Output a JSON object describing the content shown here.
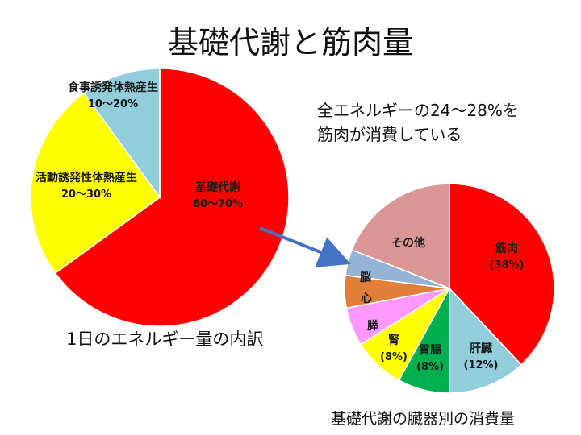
{
  "title": "基礎代謝と筋肉量",
  "annotation": {
    "line1": "全エネルギーの24～28%を",
    "line2": "筋肉が消費している"
  },
  "colors": {
    "arrow": "#4472c4"
  },
  "chart_data": [
    {
      "type": "pie",
      "caption": "1日のエネルギー量の内訳",
      "slices": [
        {
          "label": "基礎代謝",
          "value_label": "60～70%",
          "value": 65,
          "color": "#ff0000"
        },
        {
          "label": "活動誘発性体熱産生",
          "value_label": "20～30%",
          "value": 25,
          "color": "#ffff00"
        },
        {
          "label": "食事誘発体熱産生",
          "value_label": "10～20%",
          "value": 10,
          "color": "#92cddc"
        }
      ]
    },
    {
      "type": "pie",
      "caption": "基礎代謝の臓器別の消費量",
      "slices": [
        {
          "label": "筋肉",
          "value_label": "(38%)",
          "value": 38,
          "color": "#ff0000"
        },
        {
          "label": "肝臓",
          "value_label": "(12%)",
          "value": 12,
          "color": "#92cddc"
        },
        {
          "label": "胃腸",
          "value_label": "(8%)",
          "value": 8,
          "color": "#00b050"
        },
        {
          "label": "腎",
          "value_label": "(8%)",
          "value": 8,
          "color": "#ffff00"
        },
        {
          "label": "膵",
          "value_label": "",
          "value": 6,
          "color": "#ff99ff"
        },
        {
          "label": "心",
          "value_label": "",
          "value": 5,
          "color": "#e07e3a"
        },
        {
          "label": "脳",
          "value_label": "",
          "value": 4,
          "color": "#95b3d7"
        },
        {
          "label": "その他",
          "value_label": "",
          "value": 19,
          "color": "#d99694"
        }
      ]
    }
  ]
}
